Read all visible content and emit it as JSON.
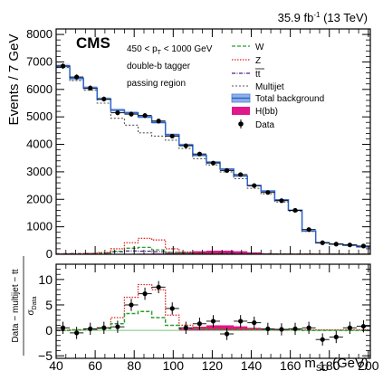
{
  "chart_data": [
    {
      "type": "line",
      "panel": "upper",
      "lumi": {
        "value": "35.9 fb",
        "exponent": "-1",
        "suffix": " (13 TeV)"
      },
      "experiment": "CMS",
      "notes": {
        "pt_left": "450 < p",
        "pt_sub": "T",
        "pt_right": " < 1000 GeV",
        "tagger": "double-b tagger",
        "region": "passing region"
      },
      "ylabel": "Events / 7 GeV",
      "ylim": [
        0,
        8200
      ],
      "xlim": [
        40,
        201
      ],
      "yticks": [
        0,
        1000,
        2000,
        3000,
        4000,
        5000,
        6000,
        7000,
        8000
      ],
      "ytick_labels": [
        "0",
        "1000",
        "2000",
        "3000",
        "4000",
        "5000",
        "6000",
        "7000",
        "8000"
      ],
      "bin_edges": [
        40,
        47,
        54,
        61,
        68,
        75,
        82,
        89,
        96,
        103,
        110,
        117,
        124,
        131,
        138,
        145,
        152,
        159,
        166,
        173,
        180,
        187,
        194,
        201
      ],
      "x": [
        43.5,
        50.5,
        57.5,
        64.5,
        71.5,
        78.5,
        85.5,
        92.5,
        99.5,
        106.5,
        113.5,
        120.5,
        127.5,
        134.5,
        141.5,
        148.5,
        155.5,
        162.5,
        169.5,
        176.5,
        183.5,
        190.5,
        197.5
      ],
      "legend": {
        "position": "top-right",
        "entries": [
          {
            "label": "W",
            "color": "#2e9e2e",
            "style": "dashed"
          },
          {
            "label": "Z",
            "color": "#e02020",
            "style": "dotted"
          },
          {
            "label": "tt",
            "color": "#4b1d8c",
            "style": "dashdot"
          },
          {
            "label": "Multijet",
            "color": "#555555",
            "style": "dashed"
          },
          {
            "label": "Total background",
            "color": "#4d7fd4",
            "style": "band"
          },
          {
            "label": "H(bb)",
            "color": "#e0188c",
            "style": "fill"
          },
          {
            "label": "Data",
            "color": "#000000",
            "style": "marker"
          }
        ]
      },
      "series": [
        {
          "name": "Total background",
          "values": [
            6850,
            6400,
            6050,
            5650,
            5250,
            5150,
            5000,
            4800,
            4350,
            3980,
            3600,
            3350,
            3100,
            2850,
            2500,
            2300,
            1980,
            1600,
            850,
            420,
            370,
            330,
            270
          ]
        },
        {
          "name": "Multijet",
          "values": [
            6800,
            6320,
            5970,
            5500,
            4950,
            4700,
            4420,
            4300,
            4150,
            3850,
            3480,
            3250,
            3000,
            2750,
            2400,
            2200,
            1900,
            1570,
            830,
            410,
            360,
            320,
            260
          ]
        },
        {
          "name": "W",
          "values": [
            10,
            15,
            25,
            40,
            110,
            220,
            250,
            160,
            60,
            30,
            20,
            15,
            10,
            8,
            8,
            6,
            5,
            5,
            5,
            5,
            4,
            4,
            3
          ]
        },
        {
          "name": "Z",
          "values": [
            10,
            15,
            30,
            60,
            200,
            420,
            580,
            520,
            200,
            80,
            45,
            30,
            20,
            15,
            12,
            10,
            8,
            8,
            6,
            6,
            5,
            5,
            4
          ]
        },
        {
          "name": "tt",
          "values": [
            20,
            25,
            30,
            50,
            90,
            120,
            110,
            90,
            70,
            60,
            50,
            45,
            40,
            30,
            25,
            20,
            15,
            10,
            8,
            6,
            5,
            4,
            3
          ]
        },
        {
          "name": "H(bb)",
          "values": [
            3,
            5,
            8,
            10,
            12,
            15,
            20,
            30,
            50,
            80,
            110,
            130,
            130,
            110,
            70,
            35,
            15,
            8,
            5,
            3,
            2,
            2,
            1
          ]
        },
        {
          "name": "Data",
          "values": [
            6850,
            6450,
            6050,
            5650,
            5150,
            5100,
            5050,
            4850,
            4300,
            3950,
            3650,
            3320,
            3050,
            2900,
            2500,
            2250,
            1950,
            1600,
            900,
            420,
            370,
            340,
            300
          ]
        }
      ]
    },
    {
      "type": "line",
      "panel": "lower",
      "ylabel_main": "Data − multijet − tt",
      "ylabel_sub": "σ",
      "ylabel_sub_index": "Data",
      "xlabel_main": "m",
      "xlabel_sub": "SD",
      "xlabel_unit": " (GeV)",
      "ylim": [
        -5.5,
        13
      ],
      "xlim": [
        40,
        201
      ],
      "yticks": [
        -5,
        0,
        5,
        10
      ],
      "ytick_labels": [
        "−5",
        "0",
        "5",
        "10"
      ],
      "xticks": [
        40,
        60,
        80,
        100,
        120,
        140,
        160,
        180,
        200
      ],
      "xtick_labels": [
        "40",
        "60",
        "80",
        "100",
        "120",
        "140",
        "160",
        "180",
        "200"
      ],
      "series": [
        {
          "name": "Z",
          "values": [
            0,
            0.1,
            0.2,
            0.5,
            2.5,
            6.5,
            9.0,
            8.0,
            3.0,
            1.0,
            0.6,
            0.5,
            0.3,
            0.2,
            0.2,
            0.1,
            0.1,
            0.1,
            0.1,
            0.1,
            0.1,
            0.1,
            0.1
          ]
        },
        {
          "name": "W",
          "values": [
            0,
            0.1,
            0.2,
            0.4,
            1.3,
            3.3,
            3.7,
            2.5,
            1.0,
            0.4,
            0.3,
            0.2,
            0.1,
            0.1,
            0.1,
            0.1,
            0.1,
            0.1,
            0,
            0,
            0,
            0,
            0
          ]
        },
        {
          "name": "H(bb)",
          "values": [
            0,
            0,
            0,
            0,
            0,
            0,
            0,
            0,
            0,
            0.3,
            0.7,
            1.0,
            1.0,
            0.8,
            0.5,
            0.2,
            0.1,
            0,
            0,
            0,
            0,
            0,
            0
          ]
        },
        {
          "name": "Data",
          "values": [
            0.5,
            -0.5,
            0.3,
            0.5,
            0.7,
            5.0,
            7.2,
            8.5,
            4.3,
            0.5,
            1.3,
            1.8,
            -0.7,
            1.8,
            1.5,
            0.3,
            0.2,
            0.3,
            0.5,
            -1.8,
            -1.3,
            0.5,
            0.8
          ]
        },
        {
          "name": "Data uncertainty",
          "values": [
            1.2,
            1.2,
            1.2,
            1.2,
            1.2,
            1.2,
            1.2,
            1.2,
            1.2,
            1.2,
            1.2,
            1.2,
            1.2,
            1.2,
            1.2,
            1.2,
            1.2,
            1.2,
            1.2,
            1.2,
            1.2,
            1.2,
            1.2
          ]
        }
      ]
    }
  ]
}
